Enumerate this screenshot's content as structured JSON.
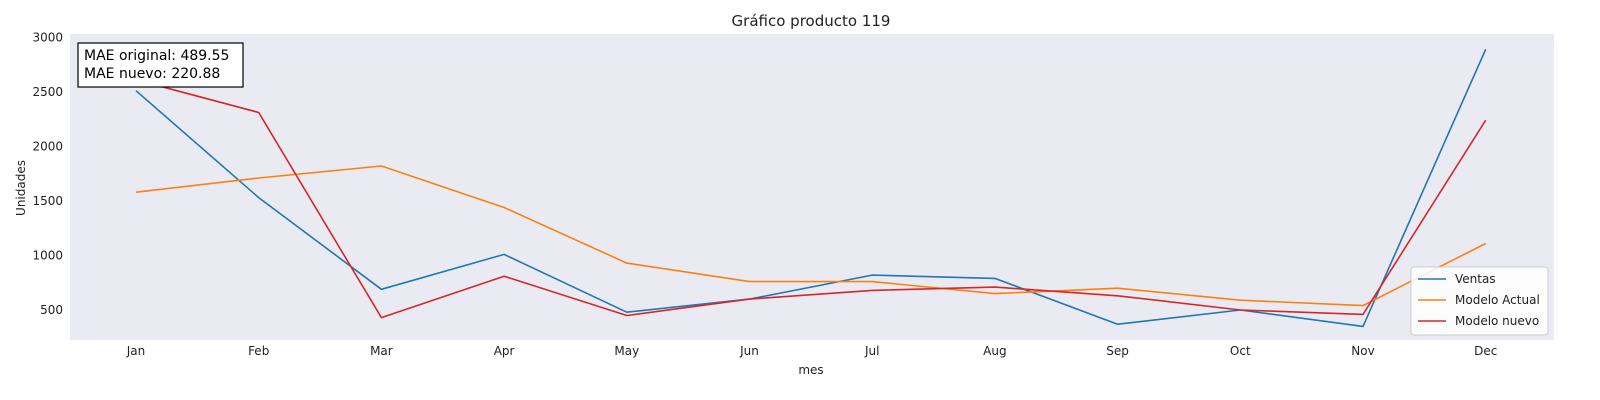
{
  "chart_data": {
    "type": "line",
    "title": "Gráfico producto 119",
    "xlabel": "mes",
    "ylabel": "Unidades",
    "categories": [
      "Jan",
      "Feb",
      "Mar",
      "Apr",
      "May",
      "Jun",
      "Jul",
      "Aug",
      "Sep",
      "Oct",
      "Nov",
      "Dec"
    ],
    "yticks": [
      500,
      1000,
      1500,
      2000,
      2500,
      3000
    ],
    "ylim": [
      225,
      3030
    ],
    "grid": false,
    "legend_position": "lower-right",
    "series": [
      {
        "name": "Ventas",
        "color": "#1f77b4",
        "values": [
          2510,
          1530,
          690,
          1010,
          480,
          600,
          820,
          790,
          370,
          500,
          350,
          2890
        ]
      },
      {
        "name": "Modelo Actual",
        "color": "#ff7f0e",
        "values": [
          1580,
          1710,
          1820,
          1440,
          930,
          760,
          760,
          650,
          700,
          590,
          540,
          1110
        ]
      },
      {
        "name": "Modelo nuevo",
        "color": "#d62728",
        "values": [
          2610,
          2310,
          430,
          810,
          450,
          600,
          680,
          710,
          630,
          500,
          460,
          2240
        ]
      }
    ],
    "annotation": {
      "mae_original": "MAE original: 489.55",
      "mae_nuevo": "MAE nuevo: 220.88"
    }
  }
}
